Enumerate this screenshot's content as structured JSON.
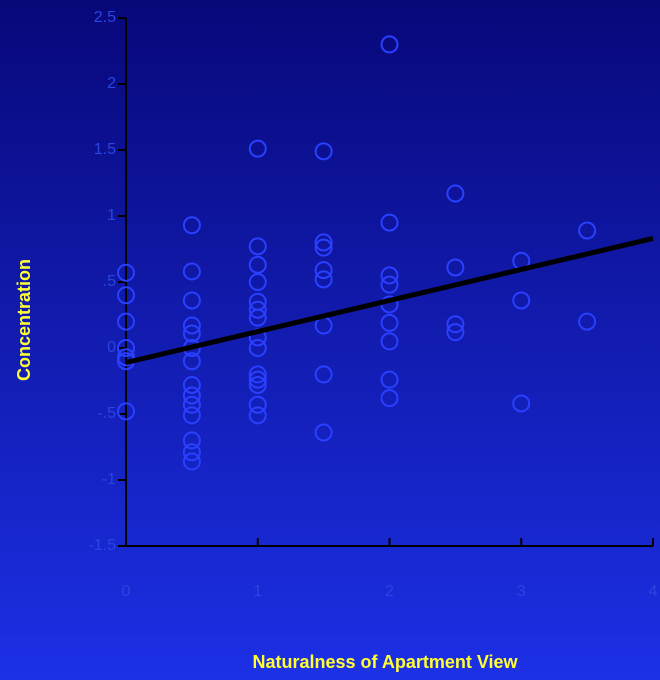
{
  "chart_data": {
    "type": "scatter",
    "x_label": "Naturalness of Apartment View",
    "y_label": "Concentration",
    "xlim": [
      0,
      4
    ],
    "ylim": [
      -1.5,
      2.5
    ],
    "xticks": [
      0,
      1,
      2,
      3,
      4
    ],
    "yticks": [
      2.5,
      2,
      1.5,
      1,
      {
        "value": 0.5,
        "label": ".5"
      },
      0,
      {
        "value": -0.5,
        "label": "-.5"
      },
      -1,
      -1.5
    ],
    "axis_color": "#000000",
    "series": [
      {
        "type": "scatter",
        "color": "#2a40ff",
        "x": [
          0,
          0,
          0,
          0,
          0,
          0,
          0,
          0.5,
          0.5,
          0.5,
          0.5,
          0.5,
          0.5,
          0.5,
          0.5,
          0.5,
          0.5,
          0.5,
          0.5,
          0.5,
          0.5,
          1,
          1,
          1,
          1,
          1,
          1,
          1,
          1,
          1,
          1,
          1,
          1,
          1,
          1,
          1.5,
          1.5,
          1.5,
          1.5,
          1.5,
          1.5,
          1.5,
          1.5,
          2,
          2,
          2,
          2,
          2,
          2,
          2,
          2,
          2,
          2.5,
          2.5,
          2.5,
          2.5,
          3,
          3,
          3,
          3.5,
          3.5
        ],
        "values": [
          0.57,
          0.4,
          0.2,
          0.0,
          -0.07,
          -0.1,
          -0.48,
          0.93,
          0.58,
          0.36,
          0.17,
          0.11,
          0.0,
          -0.1,
          -0.28,
          -0.36,
          -0.43,
          -0.51,
          -0.7,
          -0.79,
          -0.86,
          1.51,
          0.77,
          0.63,
          0.5,
          0.35,
          0.29,
          0.23,
          0.08,
          0.0,
          -0.2,
          -0.24,
          -0.28,
          -0.43,
          -0.51,
          1.49,
          0.8,
          0.76,
          0.59,
          0.52,
          0.17,
          -0.2,
          -0.64,
          2.3,
          0.95,
          0.55,
          0.48,
          0.33,
          0.19,
          0.05,
          -0.24,
          -0.38,
          1.17,
          0.61,
          0.18,
          0.12,
          0.66,
          0.36,
          -0.42,
          0.89,
          0.2
        ]
      },
      {
        "type": "line",
        "color": "#000000",
        "x": [
          0,
          4
        ],
        "values": [
          -0.11,
          0.83
        ]
      }
    ]
  }
}
